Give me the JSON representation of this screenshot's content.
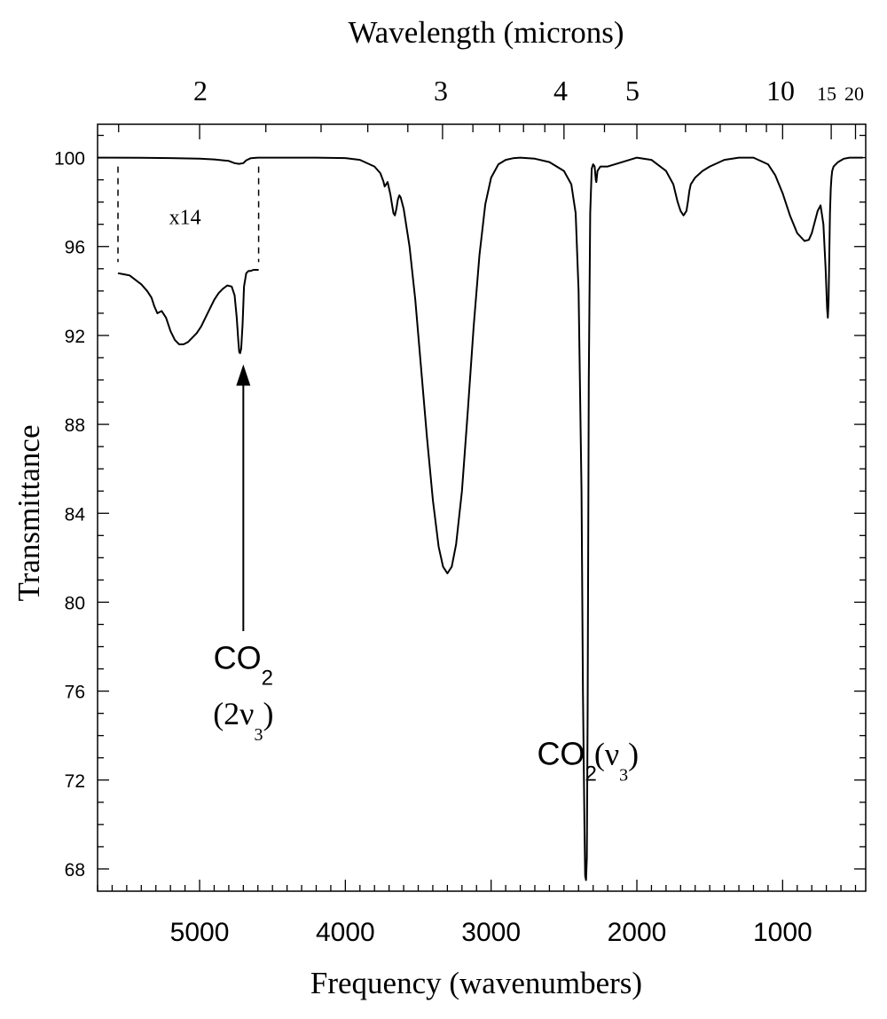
{
  "chart_data": {
    "type": "line",
    "title": "",
    "xlabel": "Frequency (wavenumbers)",
    "ylabel": "Transmittance",
    "top_axis_label": "Wavelength (microns)",
    "xlim": [
      5700,
      430
    ],
    "ylim": [
      67,
      101.5
    ],
    "x_ticks": [
      "5000",
      "4000",
      "3000",
      "2000",
      "1000"
    ],
    "y_ticks": [
      "100",
      "96",
      "92",
      "88",
      "84",
      "80",
      "76",
      "72",
      "68"
    ],
    "top_ticks": [
      "2",
      "3",
      "4",
      "5",
      "10",
      "15",
      "20"
    ],
    "grid": false,
    "series": [
      {
        "x": [
          5700,
          5600,
          5400,
          5200,
          5000,
          4900,
          4800,
          4760,
          4730,
          4700,
          4680,
          4650,
          4600,
          4400,
          4200,
          4000,
          3900,
          3800,
          3760,
          3740,
          3730,
          3720,
          3710,
          3700,
          3690,
          3680,
          3670,
          3660,
          3650,
          3640,
          3630,
          3620,
          3600,
          3560,
          3520,
          3480,
          3440,
          3400,
          3360,
          3330,
          3300,
          3270,
          3240,
          3200,
          3160,
          3120,
          3080,
          3040,
          3000,
          2950,
          2900,
          2850,
          2800,
          2700,
          2600,
          2500,
          2450,
          2420,
          2400,
          2380,
          2370,
          2360,
          2355,
          2349,
          2343,
          2338,
          2330,
          2320,
          2310,
          2300,
          2290,
          2282,
          2278,
          2270,
          2250,
          2200,
          2100,
          2000,
          1900,
          1800,
          1750,
          1720,
          1700,
          1680,
          1660,
          1650,
          1640,
          1630,
          1620,
          1600,
          1550,
          1500,
          1400,
          1300,
          1200,
          1100,
          1050,
          1000,
          950,
          900,
          850,
          820,
          800,
          780,
          760,
          740,
          720,
          705,
          695,
          690,
          685,
          680,
          675,
          670,
          665,
          660,
          650,
          620,
          580,
          540,
          500,
          470,
          450
        ],
        "values": [
          100.0,
          100.0,
          99.99,
          99.98,
          99.95,
          99.92,
          99.85,
          99.75,
          99.72,
          99.75,
          99.88,
          99.97,
          100.0,
          100.0,
          100.0,
          99.98,
          99.9,
          99.6,
          99.3,
          98.95,
          98.7,
          98.8,
          98.9,
          98.6,
          98.3,
          97.9,
          97.5,
          97.4,
          97.7,
          98.1,
          98.3,
          98.2,
          97.7,
          96.0,
          93.6,
          90.5,
          87.4,
          84.6,
          82.5,
          81.6,
          81.3,
          81.6,
          82.6,
          85.0,
          88.6,
          92.4,
          95.6,
          97.9,
          99.1,
          99.7,
          99.9,
          99.97,
          100.0,
          99.95,
          99.8,
          99.4,
          98.8,
          97.5,
          94.0,
          85.0,
          76.0,
          70.0,
          67.7,
          67.5,
          68.5,
          75.0,
          90.0,
          97.5,
          99.5,
          99.7,
          99.6,
          99.0,
          98.9,
          99.4,
          99.6,
          99.6,
          99.8,
          100.0,
          99.9,
          99.4,
          98.8,
          98.0,
          97.6,
          97.4,
          97.6,
          98.0,
          98.5,
          98.8,
          98.9,
          99.1,
          99.4,
          99.6,
          99.9,
          100.0,
          100.0,
          99.7,
          99.2,
          98.4,
          97.4,
          96.6,
          96.25,
          96.3,
          96.6,
          97.1,
          97.6,
          97.85,
          97.0,
          95.0,
          93.2,
          92.8,
          93.5,
          95.5,
          97.5,
          98.6,
          99.1,
          99.4,
          99.6,
          99.8,
          99.95,
          100.0,
          100.0,
          100.0,
          100.0
        ]
      },
      {
        "x": [
          5560,
          5520,
          5480,
          5440,
          5400,
          5360,
          5330,
          5310,
          5290,
          5260,
          5230,
          5200,
          5170,
          5140,
          5110,
          5080,
          5050,
          5020,
          4990,
          4960,
          4930,
          4900,
          4870,
          4840,
          4810,
          4780,
          4760,
          4745,
          4735,
          4728,
          4722,
          4715,
          4705,
          4695,
          4680,
          4665,
          4650,
          4630,
          4610,
          4595
        ],
        "values": [
          94.8,
          94.75,
          94.7,
          94.5,
          94.3,
          94.0,
          93.7,
          93.3,
          93.0,
          93.1,
          92.8,
          92.2,
          91.8,
          91.6,
          91.6,
          91.7,
          91.9,
          92.1,
          92.4,
          92.8,
          93.2,
          93.6,
          93.9,
          94.1,
          94.25,
          94.2,
          93.8,
          92.8,
          91.8,
          91.25,
          91.2,
          91.4,
          92.5,
          94.2,
          94.8,
          94.9,
          94.9,
          94.95,
          94.95,
          94.95
        ]
      }
    ],
    "annotations": [
      {
        "text": "x14",
        "x": 5100,
        "y": 97.0
      },
      {
        "text": "CO",
        "sub": "2",
        "x": 4700,
        "y": 77.0
      },
      {
        "text": "(2ν",
        "sub": "3",
        "tail": ")",
        "x": 4700,
        "y": 74.5
      },
      {
        "text": "CO",
        "sub": "2",
        "x": 2480,
        "y": 72.7
      },
      {
        "text": "(ν",
        "sub": "3",
        "tail": ")",
        "x": 2140,
        "y": 72.7
      }
    ],
    "arrow": {
      "from": [
        4700,
        78.7
      ],
      "to": [
        4700,
        90.7
      ]
    },
    "inset_guides": [
      {
        "x": 5560,
        "y_top": 99.6,
        "y_bottom": 95.3
      },
      {
        "x": 4595,
        "y_top": 99.6,
        "y_bottom": 95.3
      }
    ]
  }
}
